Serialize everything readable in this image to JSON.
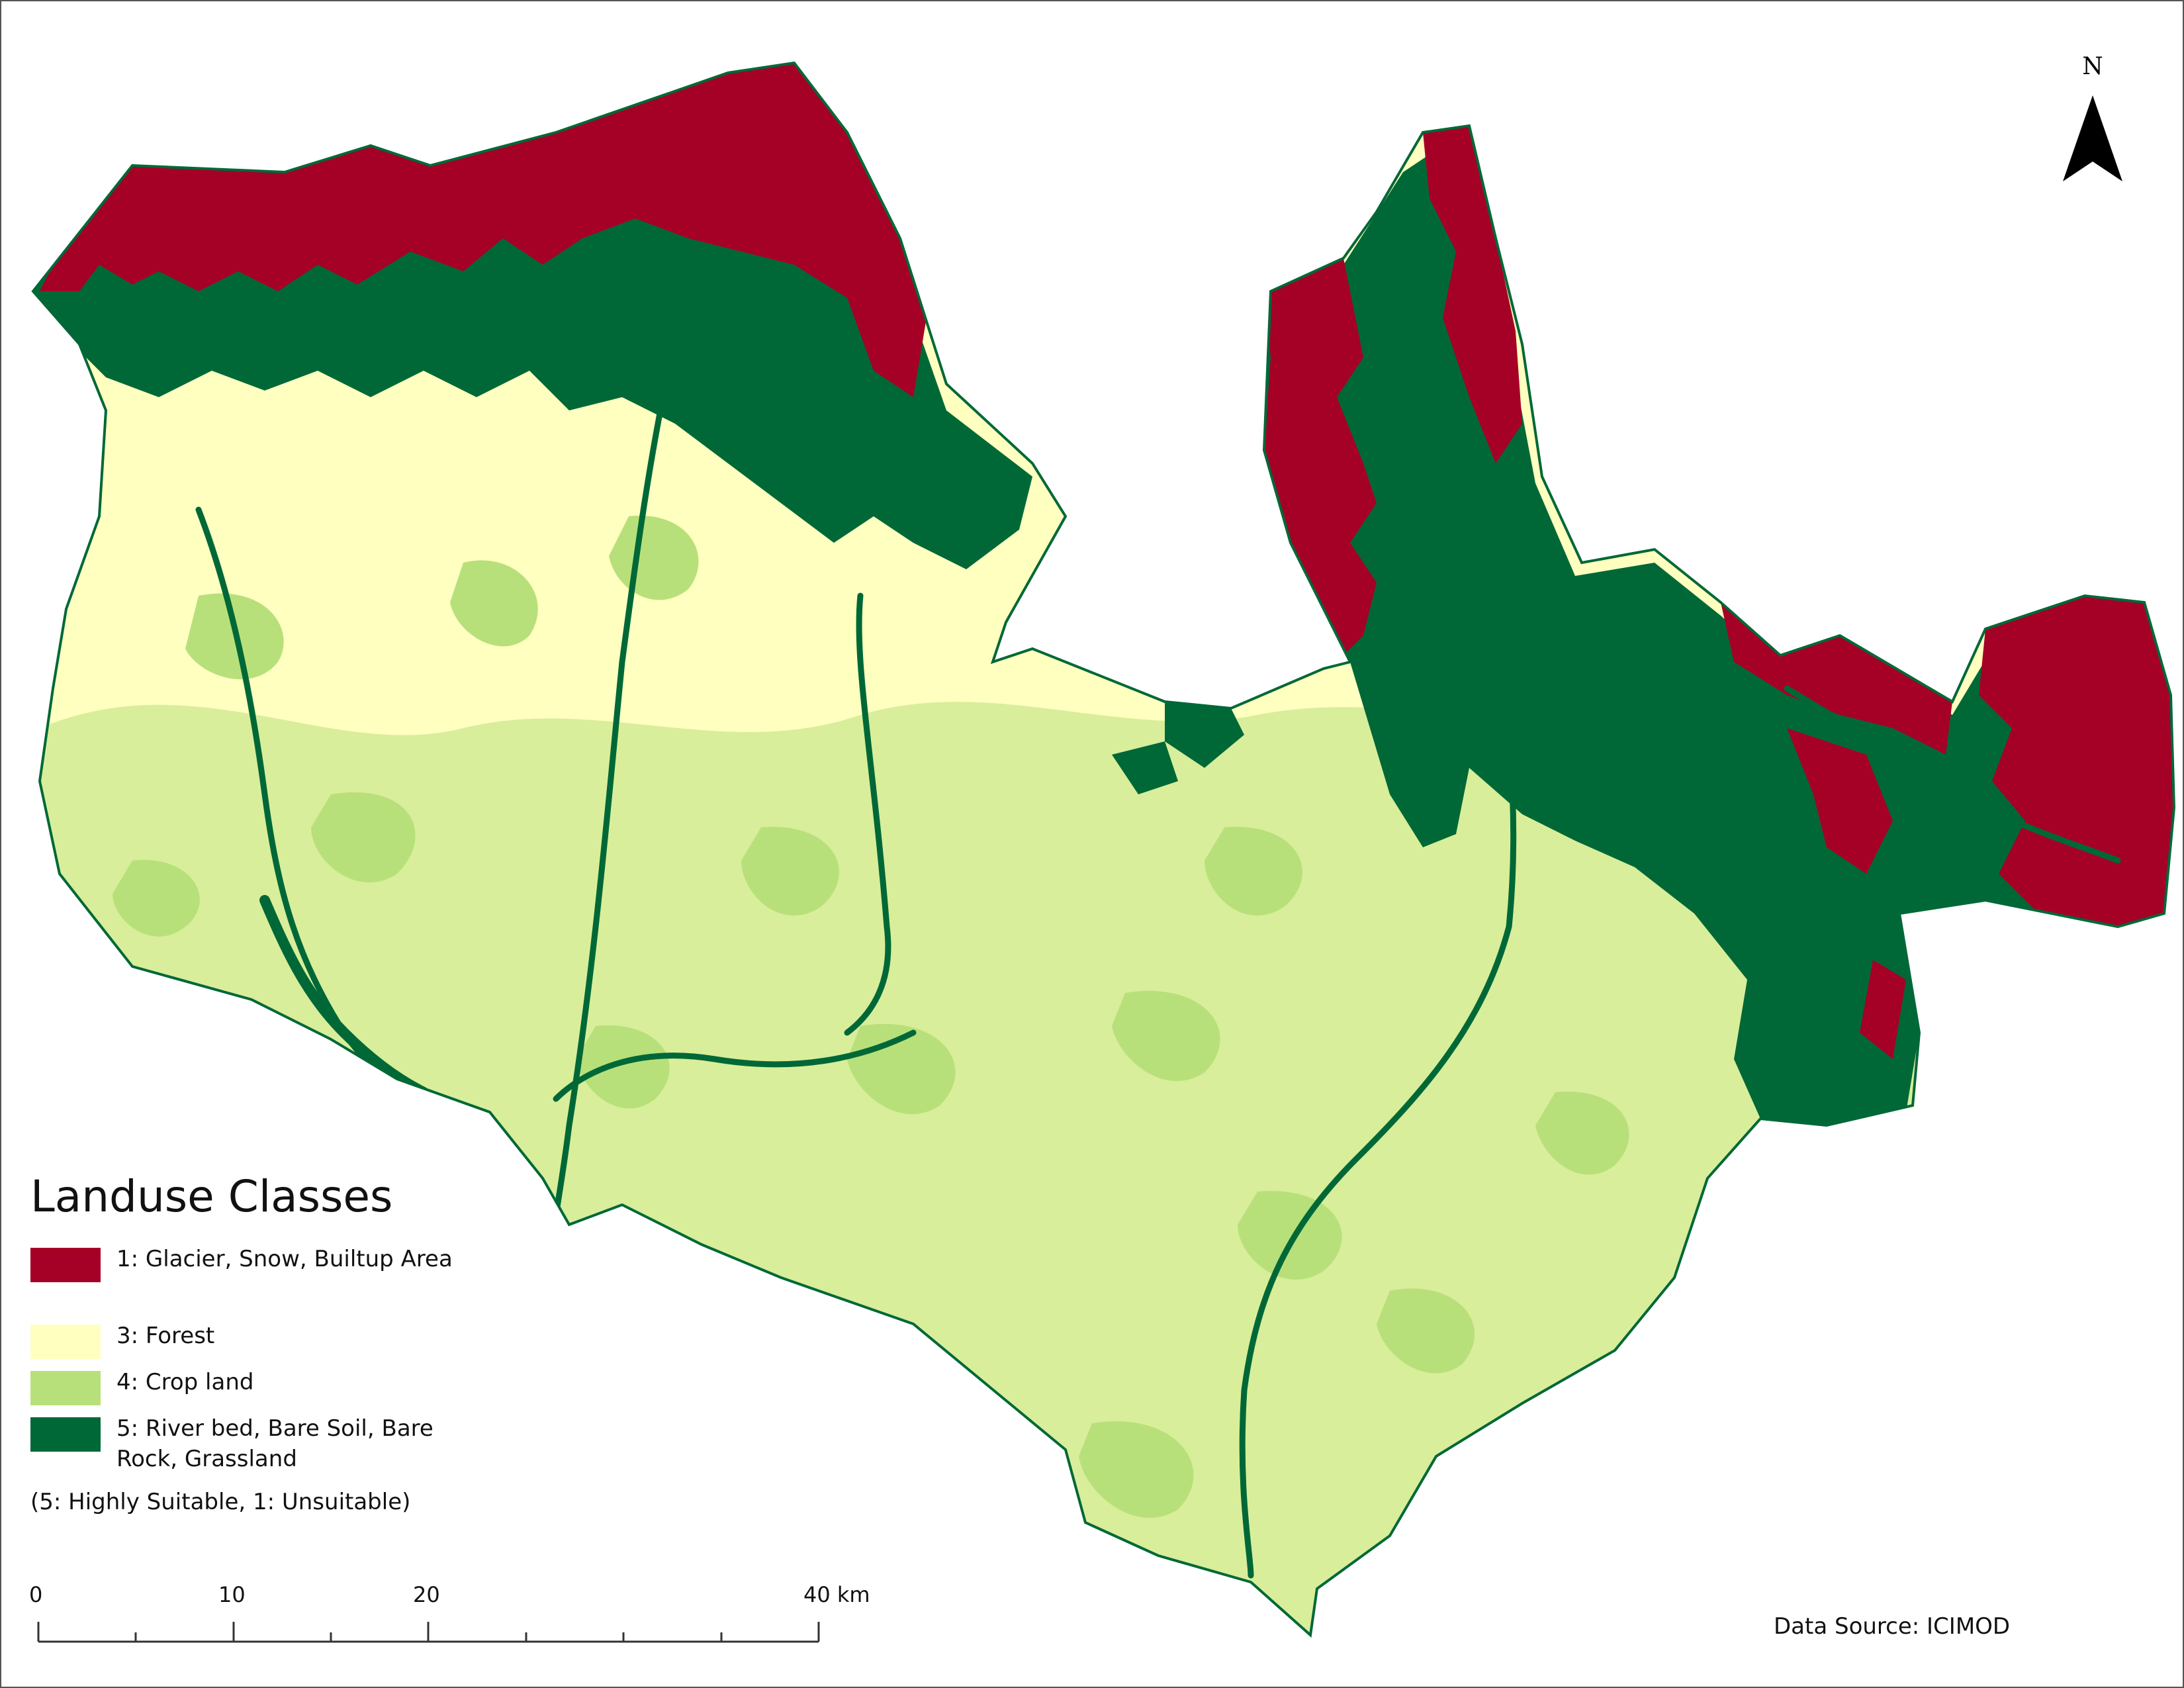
{
  "map": {
    "north_letter": "N",
    "colors": {
      "class1": "#a50026",
      "class3": "#ffffc0",
      "class4": "#b8e07a",
      "class5": "#006837"
    }
  },
  "legend": {
    "title": "Landuse Classes",
    "items": [
      {
        "label": "1: Glacier, Snow, Builtup Area",
        "color": "#a50026"
      },
      {
        "label": "3: Forest",
        "color": "#ffffc0"
      },
      {
        "label": "4: Crop land",
        "color": "#b8e07a"
      },
      {
        "label": "5: River bed, Bare Soil, Bare Rock, Grassland",
        "color": "#006837"
      }
    ],
    "note": "(5: Highly Suitable, 1: Unsuitable)"
  },
  "scale": {
    "labels": [
      "0",
      "10",
      "20",
      "40 km"
    ]
  },
  "source": "Data Source: ICIMOD"
}
